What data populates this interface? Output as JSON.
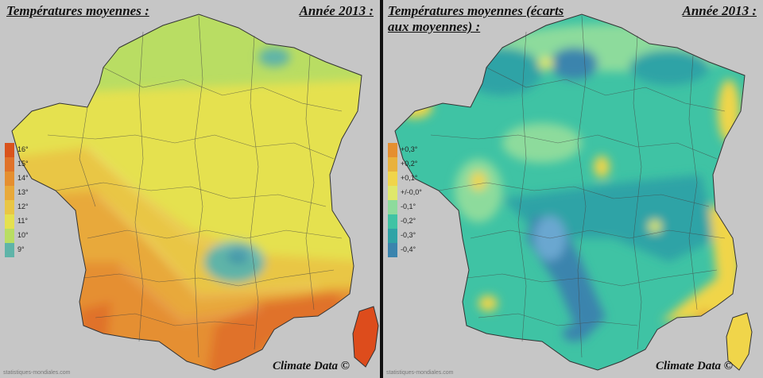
{
  "left_panel": {
    "title": "Températures moyennes :",
    "year": "Année 2013 :",
    "legend": [
      {
        "label": "16°",
        "color": "#d9531c"
      },
      {
        "label": "15°",
        "color": "#e0722a"
      },
      {
        "label": "14°",
        "color": "#e58f30"
      },
      {
        "label": "13°",
        "color": "#e8a93a"
      },
      {
        "label": "12°",
        "color": "#e9c645"
      },
      {
        "label": "11°",
        "color": "#e5e14f"
      },
      {
        "label": "10°",
        "color": "#b9dd63"
      },
      {
        "label": "9°",
        "color": "#5fb4a8"
      }
    ],
    "credit": "Climate Data ©",
    "site": "statistiques-mondiales.com"
  },
  "right_panel": {
    "title": "Températures moyennes (écarts aux moyennes) :",
    "year": "Année 2013 :",
    "legend": [
      {
        "label": "+0,3°",
        "color": "#e58f30"
      },
      {
        "label": "+0,2°",
        "color": "#e9b23c"
      },
      {
        "label": "+0,1°",
        "color": "#f0d54a"
      },
      {
        "label": "+/-0,0°",
        "color": "#dfe86a"
      },
      {
        "label": "-0,1°",
        "color": "#8ddb9c"
      },
      {
        "label": "-0,2°",
        "color": "#3fc3a4"
      },
      {
        "label": "-0,3°",
        "color": "#2fa3a6"
      },
      {
        "label": "-0,4°",
        "color": "#3a84ad"
      }
    ],
    "credit": "Climate Data ©",
    "site": "statistiques-mondiales.com"
  }
}
